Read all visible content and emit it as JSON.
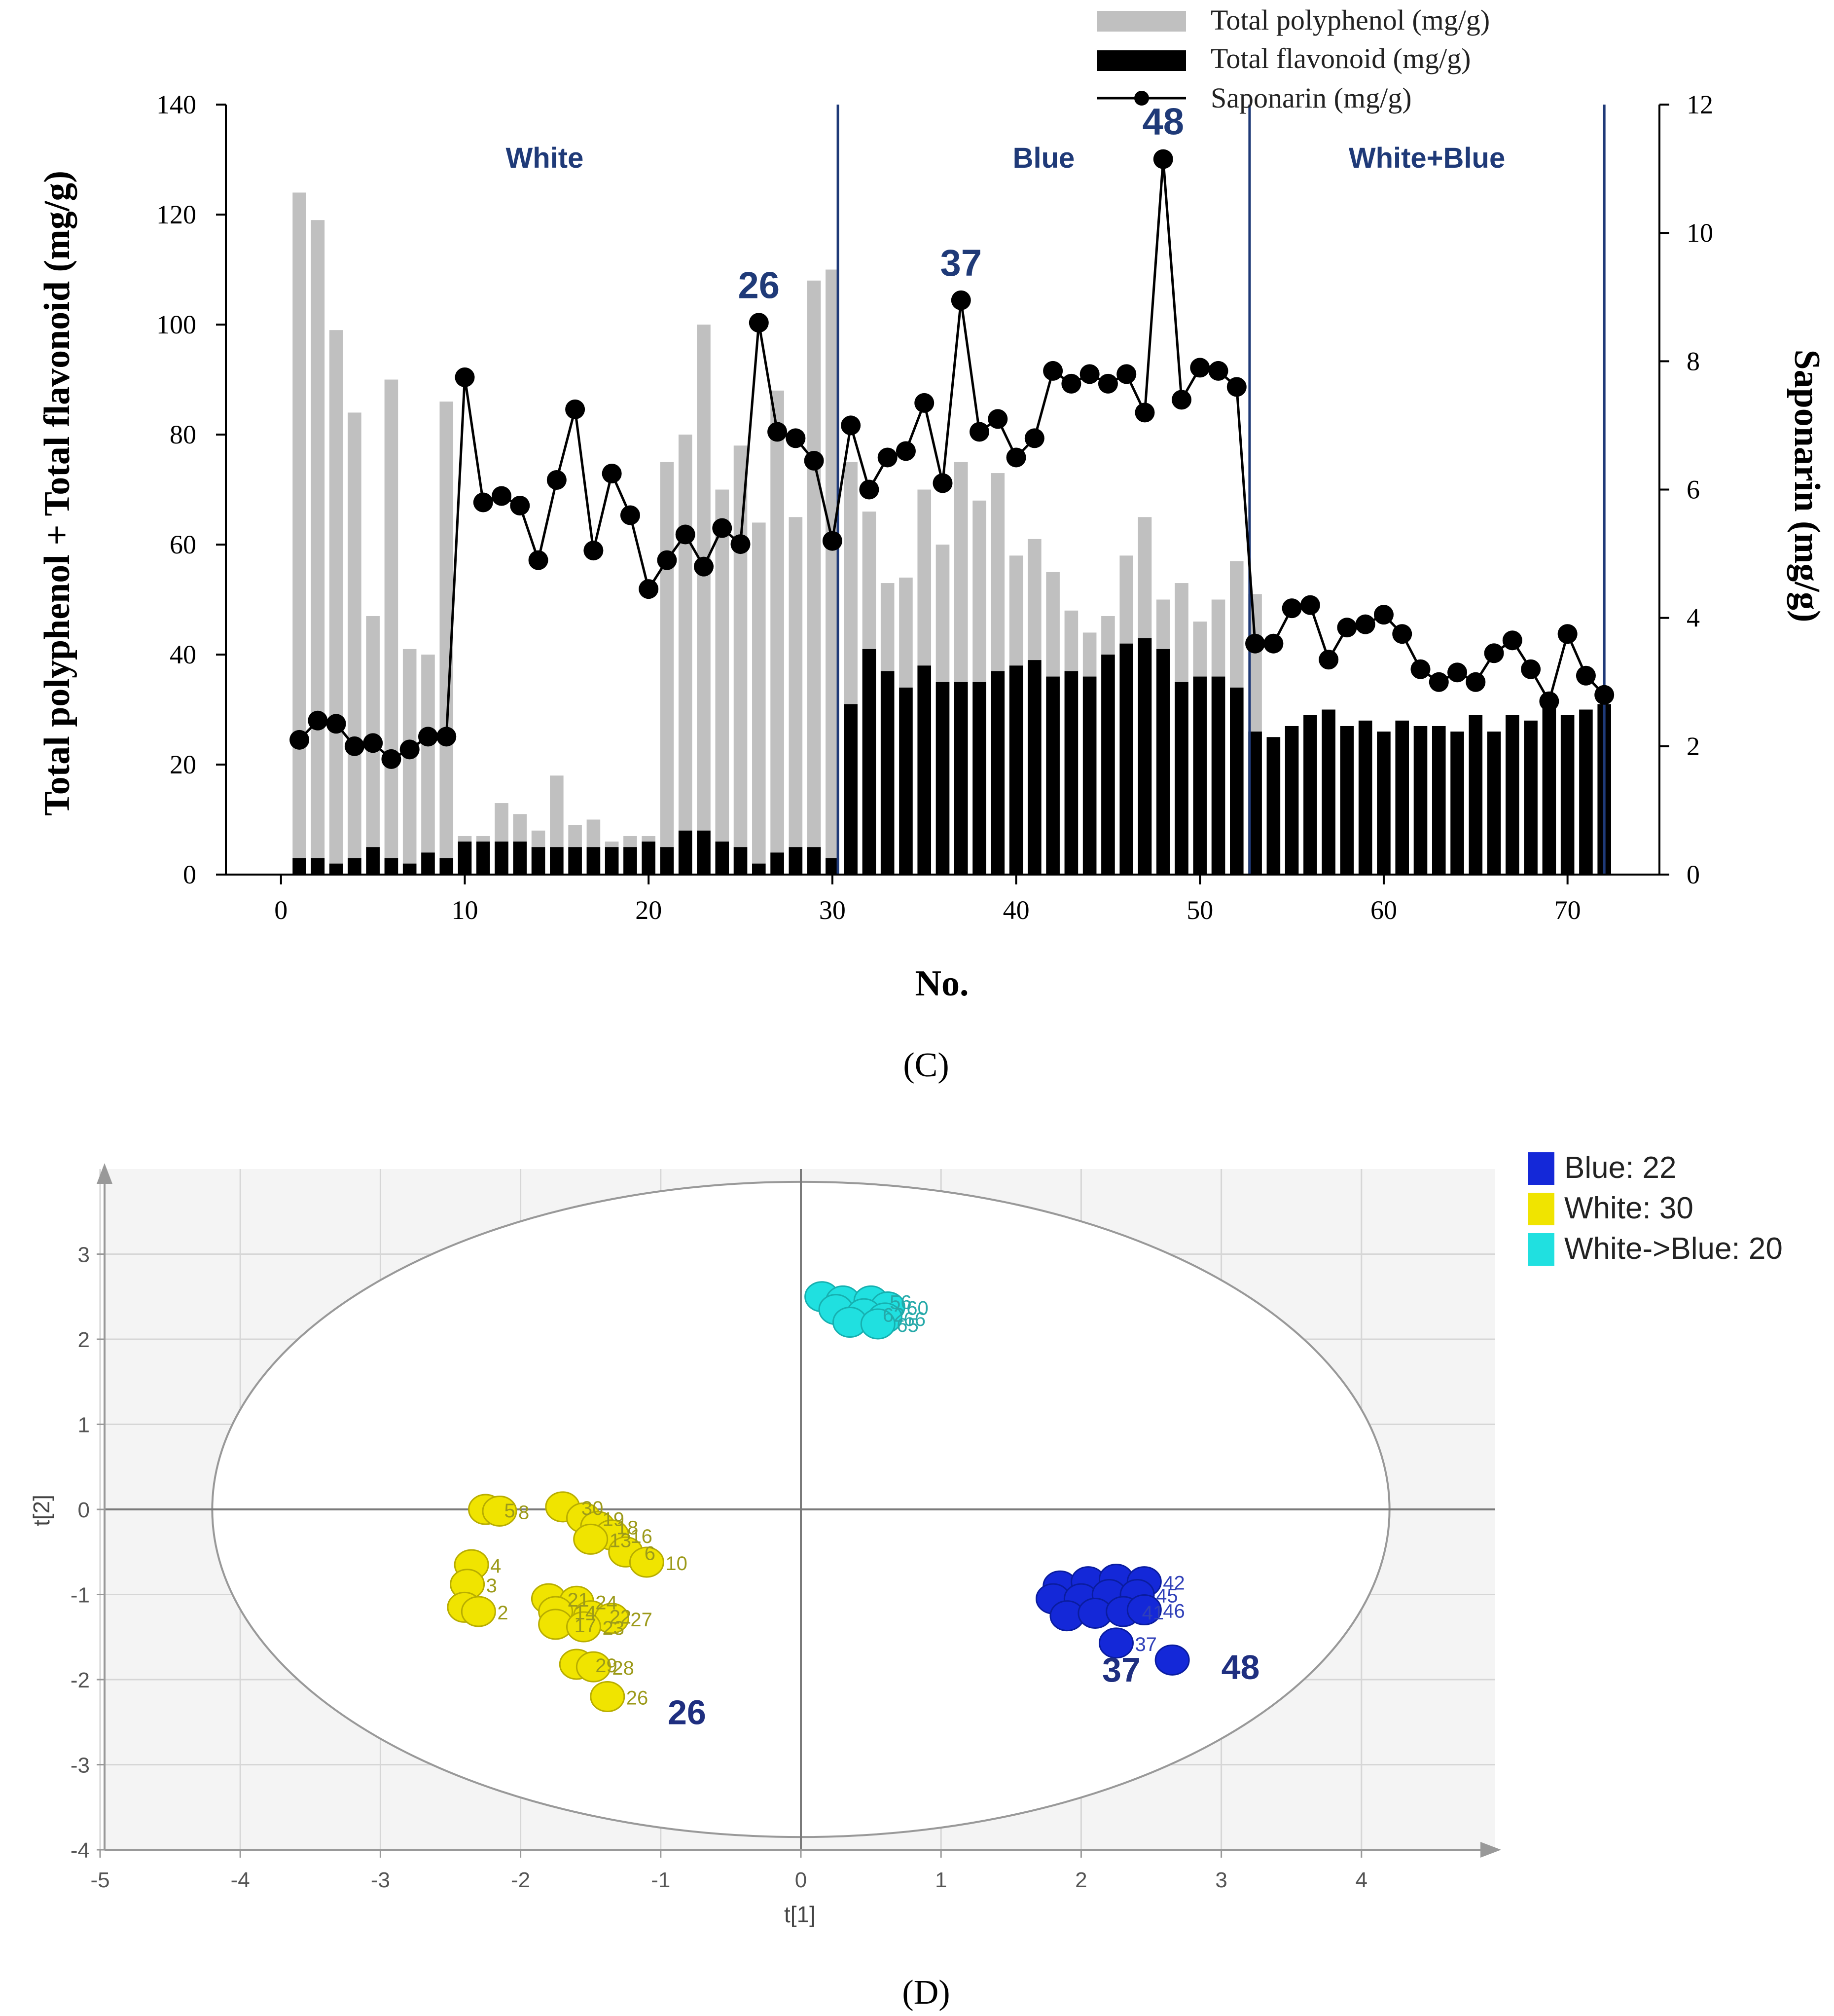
{
  "chart_data": [
    {
      "panel": "(C)",
      "type": "bar+line",
      "xlabel": "No.",
      "ylabel_left": "Total polyphenol + Total flavonoid (mg/g)",
      "ylabel_right": "Saponarin (mg/g)",
      "xlim": [
        -3,
        75
      ],
      "ylim_left": [
        0,
        140
      ],
      "ylim_right": [
        0,
        12
      ],
      "xticks": [
        "0",
        "10",
        "20",
        "30",
        "40",
        "50",
        "60",
        "70"
      ],
      "yticks_left": [
        "0",
        "20",
        "40",
        "60",
        "80",
        "100",
        "120",
        "140"
      ],
      "yticks_right": [
        "0",
        "2",
        "4",
        "6",
        "8",
        "10",
        "12"
      ],
      "legend": [
        {
          "name": "Total polyphenol (mg/g)",
          "color": "#c0c0c0"
        },
        {
          "name": "Total flavonoid (mg/g)",
          "color": "#000000"
        },
        {
          "name": "Saponarin (mg/g)",
          "color": "#000000"
        }
      ],
      "groups": [
        {
          "label": "White",
          "from": 0,
          "to": 30.3
        },
        {
          "label": "Blue",
          "from": 30.3,
          "to": 52.7
        },
        {
          "label": "White+Blue",
          "from": 52.7,
          "to": 72
        }
      ],
      "separators": [
        30.3,
        52.7,
        72
      ],
      "highlights": [
        {
          "label": "26",
          "index": 26
        },
        {
          "label": "37",
          "index": 37
        },
        {
          "label": "48",
          "index": 48
        }
      ],
      "x": [
        1,
        2,
        3,
        4,
        5,
        6,
        7,
        8,
        9,
        10,
        11,
        12,
        13,
        14,
        15,
        16,
        17,
        18,
        19,
        20,
        21,
        22,
        23,
        24,
        25,
        26,
        27,
        28,
        29,
        30,
        31,
        32,
        33,
        34,
        35,
        36,
        37,
        38,
        39,
        40,
        41,
        42,
        43,
        44,
        45,
        46,
        47,
        48,
        49,
        50,
        51,
        52,
        53,
        54,
        55,
        56,
        57,
        58,
        59,
        60,
        61,
        62,
        63,
        64,
        65,
        66,
        67,
        68,
        69,
        70,
        71,
        72
      ],
      "total_polyphenol": [
        124,
        119,
        99,
        84,
        47,
        90,
        41,
        40,
        86,
        7,
        7,
        13,
        11,
        8,
        18,
        9,
        10,
        6,
        7,
        7,
        75,
        80,
        100,
        70,
        78,
        64,
        88,
        65,
        108,
        110,
        75,
        66,
        53,
        54,
        70,
        60,
        75,
        68,
        73,
        58,
        61,
        55,
        48,
        44,
        47,
        58,
        65,
        50,
        53,
        46,
        50,
        57,
        51,
        0,
        0,
        0,
        0,
        0,
        0,
        0,
        0,
        0,
        0,
        0,
        0,
        0,
        0,
        0,
        0,
        0,
        0,
        0
      ],
      "total_flavonoid": [
        3,
        3,
        2,
        3,
        5,
        3,
        2,
        4,
        3,
        6,
        6,
        6,
        6,
        5,
        5,
        5,
        5,
        5,
        5,
        6,
        5,
        8,
        8,
        6,
        5,
        2,
        4,
        5,
        5,
        3,
        31,
        41,
        37,
        34,
        38,
        35,
        35,
        35,
        37,
        38,
        39,
        36,
        37,
        36,
        40,
        42,
        43,
        41,
        35,
        36,
        36,
        34,
        26,
        25,
        27,
        29,
        30,
        27,
        28,
        26,
        28,
        27,
        27,
        26,
        29,
        26,
        29,
        28,
        31,
        29,
        30,
        31
      ],
      "saponarin": [
        2.1,
        2.4,
        2.35,
        2.0,
        2.05,
        1.8,
        1.95,
        2.15,
        2.15,
        7.75,
        5.8,
        5.9,
        5.75,
        4.9,
        6.15,
        7.25,
        5.05,
        6.25,
        5.6,
        4.45,
        4.9,
        5.3,
        4.8,
        5.4,
        5.15,
        8.6,
        6.9,
        6.8,
        6.45,
        5.2,
        7.0,
        6.0,
        6.5,
        6.6,
        7.35,
        6.1,
        8.95,
        6.9,
        7.1,
        6.5,
        6.8,
        7.85,
        7.65,
        7.8,
        7.65,
        7.8,
        7.2,
        11.15,
        7.4,
        7.9,
        7.85,
        7.6,
        3.6,
        3.6,
        4.15,
        4.2,
        3.35,
        3.85,
        3.9,
        4.05,
        3.75,
        3.2,
        3.0,
        3.15,
        3.0,
        3.45,
        3.65,
        3.2,
        2.7,
        3.75,
        3.1,
        2.8
      ]
    },
    {
      "panel": "(D)",
      "type": "scatter",
      "xlabel": "t[1]",
      "ylabel": "t[2]",
      "xlim": [
        -5,
        5
      ],
      "ylim": [
        -4,
        3.9
      ],
      "xticks": [
        "-5",
        "-4",
        "-3",
        "-2",
        "-1",
        "0",
        "1",
        "2",
        "3",
        "4"
      ],
      "yticks": [
        "3",
        "2",
        "1",
        "0",
        "-1",
        "-2",
        "-3",
        "-4"
      ],
      "hotelling_ellipse": {
        "cx": 0,
        "cy": 0,
        "rx": 4.2,
        "ry": 3.85
      },
      "legend": [
        {
          "name": "Blue: 22",
          "color": "#1428d8"
        },
        {
          "name": "White: 30",
          "color": "#f0e400"
        },
        {
          "name": "White->Blue: 20",
          "color": "#20e0e0"
        }
      ],
      "highlights": [
        {
          "label": "26",
          "x": -0.95,
          "y": -2.35
        },
        {
          "label": "37",
          "x": 2.15,
          "y": -1.85
        },
        {
          "label": "48",
          "x": 3.0,
          "y": -1.82
        }
      ],
      "series": [
        {
          "name": "White",
          "color": "#f0e400",
          "label_color": "#9c9a1a",
          "points": [
            {
              "x": -2.25,
              "y": 0.0,
              "label": "5"
            },
            {
              "x": -2.15,
              "y": -0.02,
              "label": "8"
            },
            {
              "x": -1.7,
              "y": 0.03,
              "label": "30"
            },
            {
              "x": -1.55,
              "y": -0.1,
              "label": "19"
            },
            {
              "x": -1.45,
              "y": -0.2,
              "label": "18"
            },
            {
              "x": -1.35,
              "y": -0.3,
              "label": "16"
            },
            {
              "x": -1.5,
              "y": -0.35,
              "label": "13"
            },
            {
              "x": -1.25,
              "y": -0.5,
              "label": "6"
            },
            {
              "x": -1.1,
              "y": -0.62,
              "label": "10"
            },
            {
              "x": -2.35,
              "y": -0.65,
              "label": "4"
            },
            {
              "x": -2.38,
              "y": -0.88,
              "label": "3"
            },
            {
              "x": -2.4,
              "y": -1.15,
              "label": ""
            },
            {
              "x": -2.3,
              "y": -1.2,
              "label": "2"
            },
            {
              "x": -1.8,
              "y": -1.05,
              "label": "21"
            },
            {
              "x": -1.6,
              "y": -1.08,
              "label": "24"
            },
            {
              "x": -1.75,
              "y": -1.2,
              "label": "14"
            },
            {
              "x": -1.5,
              "y": -1.25,
              "label": "22"
            },
            {
              "x": -1.35,
              "y": -1.28,
              "label": "27"
            },
            {
              "x": -1.75,
              "y": -1.35,
              "label": "17"
            },
            {
              "x": -1.55,
              "y": -1.38,
              "label": "23"
            },
            {
              "x": -1.6,
              "y": -1.82,
              "label": "29"
            },
            {
              "x": -1.48,
              "y": -1.85,
              "label": "28"
            },
            {
              "x": -1.38,
              "y": -2.2,
              "label": "26"
            }
          ]
        },
        {
          "name": "White->Blue",
          "color": "#20e0e0",
          "label_color": "#25a9a9",
          "points": [
            {
              "x": 0.15,
              "y": 2.5,
              "label": ""
            },
            {
              "x": 0.3,
              "y": 2.45,
              "label": ""
            },
            {
              "x": 0.5,
              "y": 2.45,
              "label": "56"
            },
            {
              "x": 0.62,
              "y": 2.38,
              "label": "60"
            },
            {
              "x": 0.25,
              "y": 2.35,
              "label": ""
            },
            {
              "x": 0.45,
              "y": 2.3,
              "label": "62"
            },
            {
              "x": 0.6,
              "y": 2.25,
              "label": "66"
            },
            {
              "x": 0.35,
              "y": 2.2,
              "label": ""
            },
            {
              "x": 0.55,
              "y": 2.18,
              "label": "65"
            }
          ]
        },
        {
          "name": "Blue",
          "color": "#1428d8",
          "label_color": "#3040b8",
          "points": [
            {
              "x": 1.85,
              "y": -0.9,
              "label": ""
            },
            {
              "x": 2.05,
              "y": -0.85,
              "label": ""
            },
            {
              "x": 2.25,
              "y": -0.82,
              "label": ""
            },
            {
              "x": 2.45,
              "y": -0.85,
              "label": "42"
            },
            {
              "x": 1.8,
              "y": -1.05,
              "label": ""
            },
            {
              "x": 2.0,
              "y": -1.05,
              "label": ""
            },
            {
              "x": 2.2,
              "y": -1.0,
              "label": ""
            },
            {
              "x": 2.4,
              "y": -1.0,
              "label": "45"
            },
            {
              "x": 1.9,
              "y": -1.25,
              "label": ""
            },
            {
              "x": 2.1,
              "y": -1.22,
              "label": ""
            },
            {
              "x": 2.3,
              "y": -1.2,
              "label": "41"
            },
            {
              "x": 2.45,
              "y": -1.18,
              "label": "46"
            },
            {
              "x": 2.25,
              "y": -1.57,
              "label": "37"
            },
            {
              "x": 2.65,
              "y": -1.77,
              "label": ""
            }
          ]
        }
      ]
    }
  ],
  "panel_labels": {
    "c": "(C)",
    "d": "(D)"
  }
}
